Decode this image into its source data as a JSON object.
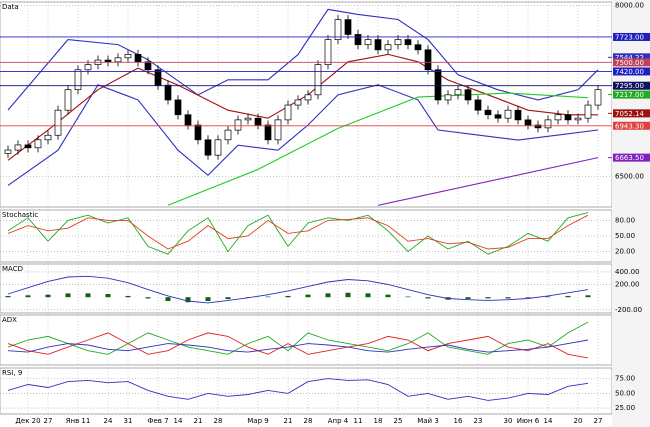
{
  "chart_data": [
    {
      "type": "candlestick",
      "title": "Data",
      "xlim": [
        -0.8,
        60.4
      ],
      "ylim": [
        6230,
        8030
      ],
      "yticks": [
        {
          "value": 8000,
          "label": "8000.00"
        },
        {
          "value": 6500,
          "label": "6500.00"
        }
      ],
      "grid": true,
      "open": [
        6700,
        6730,
        6775,
        6750,
        6820,
        6860,
        7080,
        7260,
        7435,
        7480,
        7520,
        7505,
        7540,
        7570,
        7505,
        7435,
        7300,
        7170,
        7040,
        6950,
        6820,
        6685,
        6820,
        6905,
        6995,
        7010,
        6950,
        6820,
        6995,
        7125,
        7170,
        7215,
        7480,
        7700,
        7875,
        7745,
        7655,
        7700,
        7610,
        7655,
        7700,
        7655,
        7610,
        7435,
        7170,
        7215,
        7260,
        7170,
        7080,
        7040,
        7010,
        7080,
        6995,
        6950,
        6925,
        6995,
        7040,
        6995,
        7010,
        7125
      ],
      "high": [
        6770,
        6815,
        6815,
        6860,
        6900,
        7120,
        7300,
        7475,
        7520,
        7560,
        7560,
        7580,
        7610,
        7610,
        7545,
        7475,
        7340,
        7210,
        7080,
        6990,
        6860,
        6860,
        6945,
        7035,
        7050,
        7050,
        6990,
        7035,
        7165,
        7210,
        7255,
        7520,
        7740,
        7915,
        7915,
        7785,
        7740,
        7740,
        7695,
        7740,
        7740,
        7695,
        7650,
        7475,
        7255,
        7300,
        7300,
        7210,
        7120,
        7080,
        7120,
        7120,
        7035,
        6990,
        7035,
        7080,
        7080,
        7050,
        7165,
        7300
      ],
      "low": [
        6660,
        6690,
        6710,
        6710,
        6780,
        6820,
        7040,
        7220,
        7395,
        7440,
        7465,
        7465,
        7500,
        7465,
        7395,
        7260,
        7130,
        7000,
        6910,
        6780,
        6645,
        6645,
        6780,
        6865,
        6955,
        6910,
        6780,
        6780,
        6955,
        7085,
        7130,
        7175,
        7440,
        7660,
        7705,
        7615,
        7615,
        7570,
        7570,
        7615,
        7615,
        7570,
        7395,
        7130,
        7130,
        7175,
        7130,
        7040,
        7000,
        6970,
        6970,
        6955,
        6910,
        6885,
        6885,
        6955,
        6955,
        6955,
        6970,
        7085
      ],
      "close": [
        6730,
        6775,
        6750,
        6820,
        6860,
        7080,
        7260,
        7435,
        7480,
        7520,
        7505,
        7540,
        7570,
        7505,
        7435,
        7300,
        7170,
        7040,
        6950,
        6820,
        6685,
        6820,
        6905,
        6995,
        7010,
        6950,
        6820,
        6995,
        7125,
        7170,
        7215,
        7480,
        7700,
        7875,
        7745,
        7655,
        7700,
        7610,
        7655,
        7700,
        7655,
        7610,
        7435,
        7170,
        7215,
        7260,
        7170,
        7080,
        7040,
        7010,
        7080,
        6995,
        6950,
        6925,
        6995,
        7040,
        6995,
        7010,
        7125,
        7260
      ],
      "overlays": [
        {
          "color": "#3030c0",
          "x": [
            0,
            6,
            11,
            14,
            19,
            22,
            26,
            29,
            32,
            35,
            39,
            42,
            45,
            49,
            53,
            57,
            59
          ],
          "values": [
            7082,
            7700,
            7656,
            7523,
            7214,
            7347,
            7347,
            7568,
            7965,
            7921,
            7876,
            7700,
            7391,
            7259,
            7170,
            7259,
            7435
          ]
        },
        {
          "color": "#3030c0",
          "x": [
            0,
            5,
            9,
            13,
            17,
            20,
            23,
            27,
            30,
            33,
            37,
            41,
            43,
            47,
            51,
            55,
            59
          ],
          "values": [
            6420,
            6729,
            7303,
            7170,
            6729,
            6508,
            6773,
            6729,
            6950,
            7214,
            7303,
            7170,
            6906,
            6861,
            6817,
            6861,
            6906
          ]
        },
        {
          "color": "#a01010",
          "x": [
            0,
            4,
            9,
            13,
            17,
            22,
            26,
            30,
            34,
            38,
            41,
            44,
            48,
            52,
            56,
            59
          ],
          "values": [
            6640,
            6905,
            7260,
            7450,
            7300,
            7080,
            7010,
            7215,
            7505,
            7570,
            7505,
            7345,
            7215,
            7080,
            7040,
            7040
          ]
        },
        {
          "color": "#22cc22",
          "x": [
            16,
            25,
            33,
            41,
            50,
            58
          ],
          "values": [
            6245,
            6560,
            6920,
            7195,
            7230,
            7190
          ]
        },
        {
          "color": "#8020c0",
          "x": [
            37,
            59
          ],
          "values": [
            6244,
            6663.5
          ]
        }
      ],
      "levels": [
        {
          "value": 7723,
          "label": "7723.00",
          "color": "#2020c0",
          "line": true
        },
        {
          "value": 7544.22,
          "label": "7544.22",
          "color": "#3030c0",
          "line": false
        },
        {
          "value": 7500,
          "label": "7500.00",
          "color": "#c04060",
          "line": true
        },
        {
          "value": 7420,
          "label": "7420.00",
          "color": "#2020c0",
          "line": true
        },
        {
          "value": 7295,
          "label": "7295.00",
          "color": "#101060",
          "line": true
        },
        {
          "value": 7217,
          "label": "7217.00",
          "color": "#22aa22",
          "line": false
        },
        {
          "value": 7052.14,
          "label": "7052.14",
          "color": "#a01010",
          "line": false
        },
        {
          "value": 6943.3,
          "label": "6943.30",
          "color": "#e04040",
          "line": true
        },
        {
          "value": 6663.5,
          "label": "6663.50",
          "color": "#8020c0",
          "line": false
        }
      ]
    },
    {
      "type": "line",
      "title": "Stochastic",
      "xlim": [
        -0.8,
        60.4
      ],
      "ylim": [
        0,
        100
      ],
      "yticks": [
        {
          "value": 80,
          "label": "80.00"
        },
        {
          "value": 50,
          "label": "50.00"
        },
        {
          "value": 20,
          "label": "20.00"
        }
      ],
      "grid": true,
      "x": [
        0,
        2,
        4,
        6,
        8,
        10,
        12,
        14,
        16,
        18,
        20,
        22,
        24,
        26,
        28,
        30,
        32,
        34,
        36,
        38,
        40,
        42,
        44,
        46,
        48,
        50,
        52,
        54,
        56,
        58
      ],
      "series": [
        {
          "color": "#22aa22",
          "values": [
            60,
            85,
            40,
            80,
            90,
            75,
            85,
            30,
            15,
            60,
            85,
            20,
            70,
            90,
            30,
            75,
            85,
            80,
            90,
            60,
            20,
            50,
            25,
            40,
            15,
            30,
            55,
            40,
            85,
            95
          ]
        },
        {
          "color": "#e04020",
          "values": [
            55,
            70,
            60,
            65,
            85,
            80,
            80,
            50,
            25,
            40,
            70,
            45,
            50,
            80,
            55,
            60,
            80,
            82,
            85,
            70,
            40,
            45,
            35,
            38,
            25,
            28,
            45,
            45,
            70,
            90
          ]
        }
      ]
    },
    {
      "type": "macd",
      "title": "MACD",
      "xlim": [
        -0.8,
        60.4
      ],
      "ylim": [
        -250,
        525
      ],
      "yticks": [
        {
          "value": 400,
          "label": "400.00"
        },
        {
          "value": 200,
          "label": "200.00"
        },
        {
          "value": -200,
          "label": "-200.00"
        }
      ],
      "grid": true,
      "x": [
        0,
        2,
        4,
        6,
        8,
        10,
        12,
        14,
        16,
        18,
        20,
        22,
        24,
        26,
        28,
        30,
        32,
        34,
        36,
        38,
        40,
        42,
        44,
        46,
        48,
        50,
        52,
        54,
        56,
        58
      ],
      "histogram": {
        "color": "#106010",
        "values": [
          20,
          30,
          40,
          60,
          60,
          50,
          20,
          -20,
          -60,
          -80,
          -60,
          -30,
          -10,
          10,
          20,
          40,
          60,
          70,
          60,
          40,
          10,
          -20,
          -40,
          -30,
          -20,
          -20,
          -10,
          10,
          20,
          30
        ]
      },
      "series": [
        {
          "color": "#3030c0",
          "values": [
            50,
            150,
            250,
            320,
            330,
            300,
            230,
            120,
            20,
            -60,
            -90,
            -50,
            -10,
            40,
            100,
            170,
            240,
            280,
            260,
            200,
            120,
            40,
            -20,
            -40,
            -50,
            -40,
            -20,
            20,
            70,
            120
          ]
        }
      ]
    },
    {
      "type": "line",
      "title": "ADX",
      "xlim": [
        -0.8,
        60.4
      ],
      "ylim": [
        0,
        70
      ],
      "grid": true,
      "x": [
        0,
        2,
        4,
        6,
        8,
        10,
        12,
        14,
        16,
        18,
        20,
        22,
        24,
        26,
        28,
        30,
        32,
        34,
        36,
        38,
        40,
        42,
        44,
        46,
        48,
        50,
        52,
        54,
        56,
        58
      ],
      "series": [
        {
          "color": "#22aa22",
          "values": [
            25,
            35,
            40,
            30,
            20,
            15,
            30,
            45,
            35,
            25,
            20,
            15,
            30,
            40,
            20,
            45,
            35,
            30,
            25,
            20,
            30,
            45,
            25,
            20,
            15,
            30,
            35,
            25,
            45,
            60
          ]
        },
        {
          "color": "#e02020",
          "values": [
            30,
            20,
            15,
            25,
            35,
            45,
            30,
            15,
            20,
            35,
            45,
            40,
            25,
            15,
            30,
            15,
            20,
            25,
            30,
            40,
            35,
            20,
            30,
            35,
            40,
            25,
            20,
            30,
            15,
            10
          ]
        },
        {
          "color": "#3030c0",
          "values": [
            20,
            18,
            25,
            30,
            28,
            22,
            20,
            25,
            30,
            28,
            25,
            20,
            18,
            22,
            25,
            30,
            28,
            25,
            20,
            18,
            22,
            25,
            28,
            22,
            18,
            20,
            22,
            25,
            30,
            35
          ]
        }
      ]
    },
    {
      "type": "line",
      "title": "RSI, 9",
      "xlim": [
        -0.8,
        60.4
      ],
      "ylim": [
        15,
        93
      ],
      "yticks": [
        {
          "value": 75,
          "label": "75.00"
        },
        {
          "value": 50,
          "label": "50.00"
        },
        {
          "value": 25,
          "label": "25.00"
        }
      ],
      "grid": true,
      "x": [
        0,
        2,
        4,
        6,
        8,
        10,
        12,
        14,
        16,
        18,
        20,
        22,
        24,
        26,
        28,
        30,
        32,
        34,
        36,
        38,
        40,
        42,
        44,
        46,
        48,
        50,
        52,
        54,
        56,
        58
      ],
      "series": [
        {
          "color": "#3030c0",
          "values": [
            55,
            65,
            60,
            70,
            72,
            68,
            70,
            55,
            45,
            40,
            50,
            45,
            48,
            55,
            50,
            70,
            75,
            72,
            73,
            65,
            45,
            50,
            40,
            45,
            38,
            42,
            50,
            48,
            62,
            67
          ]
        }
      ],
      "xticks": [
        {
          "value": 2,
          "label": "Дек 20"
        },
        {
          "value": 4,
          "label": "27"
        },
        {
          "value": 7,
          "label": "Янв 11"
        },
        {
          "value": 10,
          "label": "24"
        },
        {
          "value": 12,
          "label": "31"
        },
        {
          "value": 15,
          "label": "Фев 7"
        },
        {
          "value": 17,
          "label": "14"
        },
        {
          "value": 19,
          "label": "21"
        },
        {
          "value": 21,
          "label": "28"
        },
        {
          "value": 25,
          "label": "Мар 9"
        },
        {
          "value": 28,
          "label": "21"
        },
        {
          "value": 30,
          "label": "28"
        },
        {
          "value": 33,
          "label": "Апр 4"
        },
        {
          "value": 35,
          "label": "11"
        },
        {
          "value": 37,
          "label": "18"
        },
        {
          "value": 39,
          "label": "25"
        },
        {
          "value": 42,
          "label": "Май 3"
        },
        {
          "value": 45,
          "label": "16"
        },
        {
          "value": 47,
          "label": "23"
        },
        {
          "value": 50,
          "label": "30"
        },
        {
          "value": 52,
          "label": "Июн 6"
        },
        {
          "value": 54,
          "label": "14"
        },
        {
          "value": 57,
          "label": "20"
        },
        {
          "value": 59,
          "label": "27"
        }
      ]
    }
  ]
}
